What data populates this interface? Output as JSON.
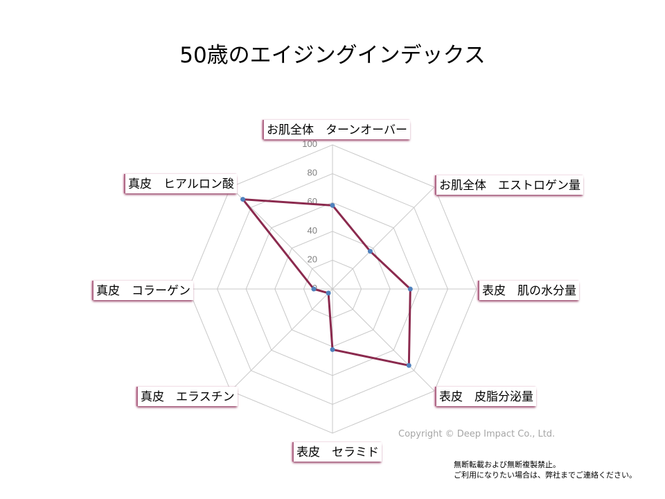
{
  "chart_data": {
    "type": "radar",
    "title": "50歳のエイジングインデックス",
    "categories": [
      "お肌全体　ターンオーバー",
      "お肌全体　エストロゲン量",
      "表皮　肌の水分量",
      "表皮　皮脂分泌量",
      "表皮　セラミド",
      "真皮　エラスチン",
      "真皮　コラーゲン",
      "真皮　ヒアルロン酸"
    ],
    "values": [
      58,
      37,
      54,
      75,
      42,
      4,
      13,
      88
    ],
    "rlim": [
      0,
      100
    ],
    "ticks": [
      0,
      20,
      40,
      60,
      80,
      100
    ],
    "grid": true,
    "colors": {
      "series": "#8b2a4e",
      "marker": "#4f81bd",
      "grid": "#c8c8c8"
    }
  },
  "footer": {
    "copyright": "Copyright © Deep Impact Co., Ltd.",
    "notice_line1": "無断転載および無断複製禁止。",
    "notice_line2": "ご利用になりたい場合は、弊社までご連絡ください。"
  }
}
